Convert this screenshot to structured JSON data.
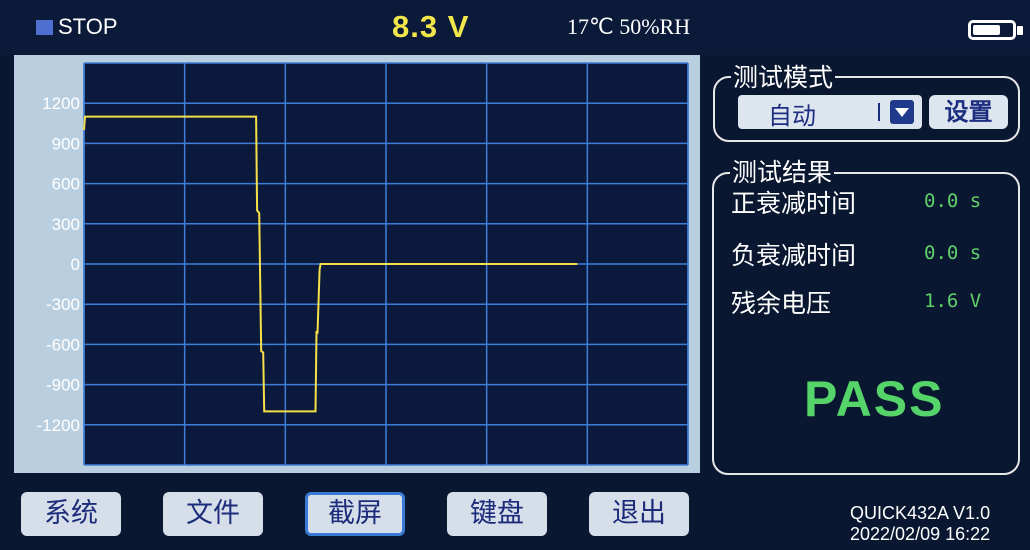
{
  "status": {
    "state": "STOP",
    "voltage": "8.3 V",
    "environment": "17℃ 50%RH",
    "battery_level": 0.72
  },
  "chart_data": {
    "type": "line",
    "yticks": [
      "1200",
      "900",
      "600",
      "300",
      "0",
      "-300",
      "-600",
      "-900",
      "-1200"
    ],
    "ylim": [
      -1500,
      1500
    ],
    "xlim": [
      0,
      600
    ],
    "grid": true,
    "series": [
      {
        "color": "#f5e04a",
        "points": [
          [
            0,
            1000
          ],
          [
            1,
            1100
          ],
          [
            171,
            1100
          ],
          [
            172,
            400
          ],
          [
            174,
            380
          ],
          [
            176,
            -650
          ],
          [
            178,
            -660
          ],
          [
            179,
            -1100
          ],
          [
            230,
            -1100
          ],
          [
            231,
            -500
          ],
          [
            232,
            -520
          ],
          [
            234,
            -40
          ],
          [
            235,
            0
          ],
          [
            490,
            0
          ]
        ]
      }
    ]
  },
  "mode": {
    "title": "测试模式",
    "selected": "自动",
    "settings_label": "设置"
  },
  "results": {
    "title": "测试结果",
    "rows": [
      {
        "label": "正衰减时间",
        "value": "0.0 s"
      },
      {
        "label": "负衰减时间",
        "value": "0.0 s"
      },
      {
        "label": "残余电压",
        "value": "1.6 V"
      }
    ],
    "verdict": "PASS"
  },
  "buttons": {
    "system": "系统",
    "file": "文件",
    "screenshot": "截屏",
    "keyboard": "键盘",
    "exit": "退出"
  },
  "device": {
    "model": "QUICK432A V1.0",
    "datetime": "2022/02/09 16:22"
  }
}
